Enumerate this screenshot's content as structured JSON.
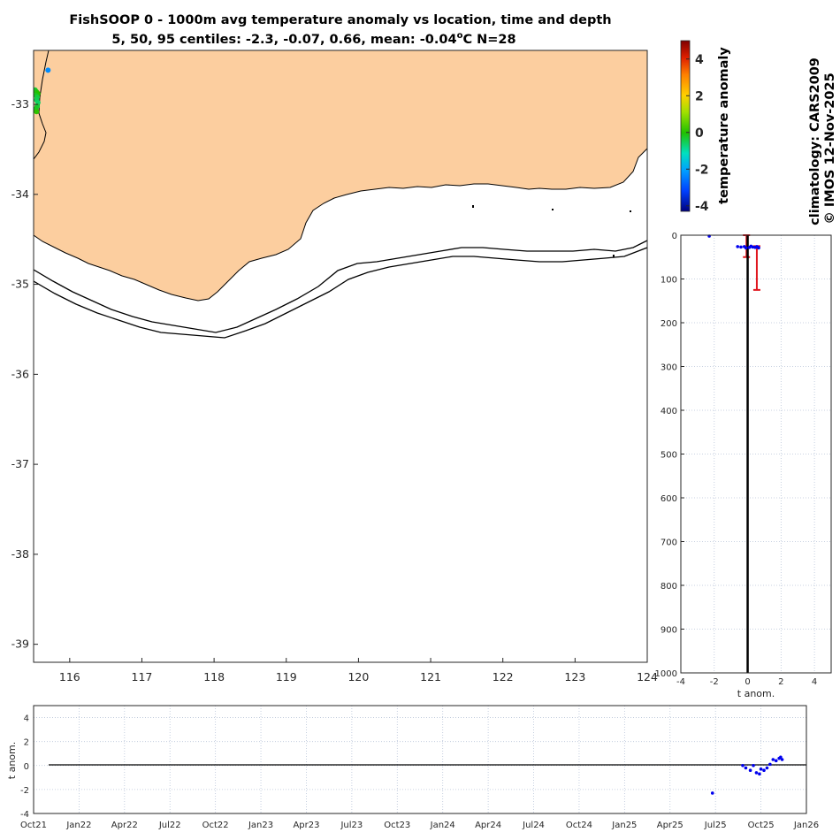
{
  "title": {
    "line1": "FishSOOP 0 - 1000m avg temperature anomaly vs location, time and depth",
    "line2_prefix": "5, 50, 95 centiles: -2.3, -0.07, 0.66, mean: -0.04",
    "line2_unit_sup": "o",
    "line2_suffix": "C N=28"
  },
  "credits": {
    "climatology": "climatology: CARS2009",
    "copyright": "© IMOS 12-Nov-2025"
  },
  "colors": {
    "land": "#fcce9f",
    "coast": "#000000",
    "obs_blue": "#0000ee",
    "centile_bar": "#e0161e",
    "grid": "#b8c4d8"
  },
  "chart_data": [
    {
      "type": "scatter",
      "name": "map",
      "xlim": [
        115.5,
        124
      ],
      "ylim": [
        -39.2,
        -32.4
      ],
      "x_ticks": [
        "116",
        "117",
        "118",
        "119",
        "120",
        "121",
        "122",
        "123",
        "124"
      ],
      "y_ticks": [
        "-33",
        "-34",
        "-35",
        "-36",
        "-37",
        "-38",
        "-39"
      ],
      "points": [
        {
          "lon": 115.7,
          "lat": -32.62,
          "anom": -2.3
        },
        {
          "lon": 115.52,
          "lat": -32.84,
          "anom": -0.3
        },
        {
          "lon": 115.54,
          "lat": -32.86,
          "anom": -0.1
        },
        {
          "lon": 115.56,
          "lat": -32.88,
          "anom": 0.0
        },
        {
          "lon": 115.53,
          "lat": -32.9,
          "anom": -0.2
        },
        {
          "lon": 115.55,
          "lat": -32.92,
          "anom": -0.4
        },
        {
          "lon": 115.54,
          "lat": -32.95,
          "anom": -0.5
        },
        {
          "lon": 115.56,
          "lat": -32.98,
          "anom": -0.6
        },
        {
          "lon": 115.55,
          "lat": -33.02,
          "anom": -0.3
        },
        {
          "lon": 115.53,
          "lat": -33.05,
          "anom": -0.2
        },
        {
          "lon": 115.54,
          "lat": -33.08,
          "anom": 0.1
        }
      ]
    },
    {
      "type": "bar",
      "name": "colorbar",
      "label": "temperature anomaly",
      "range": [
        -4.3,
        5
      ],
      "ticks": [
        "4",
        "2",
        "0",
        "-2",
        "-4"
      ],
      "tick_values": [
        4,
        2,
        0,
        -2,
        -4
      ]
    },
    {
      "type": "scatter",
      "name": "depth_profile",
      "xlabel": "t anom.",
      "xlim": [
        -4,
        5
      ],
      "ylim": [
        0,
        1000
      ],
      "x_ticks": [
        "-4",
        "-2",
        "0",
        "2",
        "4"
      ],
      "y_ticks": [
        "0",
        "100",
        "200",
        "300",
        "400",
        "500",
        "600",
        "700",
        "800",
        "900",
        "1000"
      ],
      "points": [
        {
          "x": -2.3,
          "depth": 2
        },
        {
          "x": -0.6,
          "depth": 26
        },
        {
          "x": -0.4,
          "depth": 27
        },
        {
          "x": -0.2,
          "depth": 26
        },
        {
          "x": 0.1,
          "depth": 28
        },
        {
          "x": 0.3,
          "depth": 27
        },
        {
          "x": 0.45,
          "depth": 28
        },
        {
          "x": 0.55,
          "depth": 26
        },
        {
          "x": 0.6,
          "depth": 27
        },
        {
          "x": 0.66,
          "depth": 29
        },
        {
          "x": -0.1,
          "depth": 29
        },
        {
          "x": 0.2,
          "depth": 25
        }
      ],
      "centiles": [
        {
          "x": -0.07,
          "depth_top": 0,
          "depth_bottom": 50
        },
        {
          "x": 0.55,
          "depth_top": 25,
          "depth_bottom": 125
        }
      ]
    },
    {
      "type": "scatter",
      "name": "time_series",
      "ylabel": "t anom.",
      "xlim": [
        0,
        51
      ],
      "ylim": [
        -4,
        5
      ],
      "x_ticks": [
        "Oct21",
        "Jan22",
        "Apr22",
        "Jul22",
        "Oct22",
        "Jan23",
        "Apr23",
        "Jul23",
        "Oct23",
        "Jan24",
        "Apr24",
        "Jul24",
        "Oct24",
        "Jan25",
        "Apr25",
        "Jul25",
        "Oct25",
        "Jan26"
      ],
      "y_ticks": [
        "4",
        "2",
        "0",
        "-2",
        "-4"
      ],
      "y_tick_values": [
        4,
        2,
        0,
        -2,
        -4
      ],
      "points": [
        {
          "t": 44.8,
          "y": -2.3
        },
        {
          "t": 46.8,
          "y": 0.0
        },
        {
          "t": 47.0,
          "y": -0.2
        },
        {
          "t": 47.3,
          "y": -0.4
        },
        {
          "t": 47.5,
          "y": 0.0
        },
        {
          "t": 47.7,
          "y": -0.6
        },
        {
          "t": 47.9,
          "y": -0.7
        },
        {
          "t": 48.0,
          "y": -0.3
        },
        {
          "t": 48.2,
          "y": -0.4
        },
        {
          "t": 48.4,
          "y": -0.2
        },
        {
          "t": 48.6,
          "y": 0.1
        },
        {
          "t": 48.8,
          "y": 0.5
        },
        {
          "t": 49.0,
          "y": 0.4
        },
        {
          "t": 49.2,
          "y": 0.6
        },
        {
          "t": 49.3,
          "y": 0.7
        },
        {
          "t": 49.4,
          "y": 0.5
        }
      ]
    }
  ]
}
